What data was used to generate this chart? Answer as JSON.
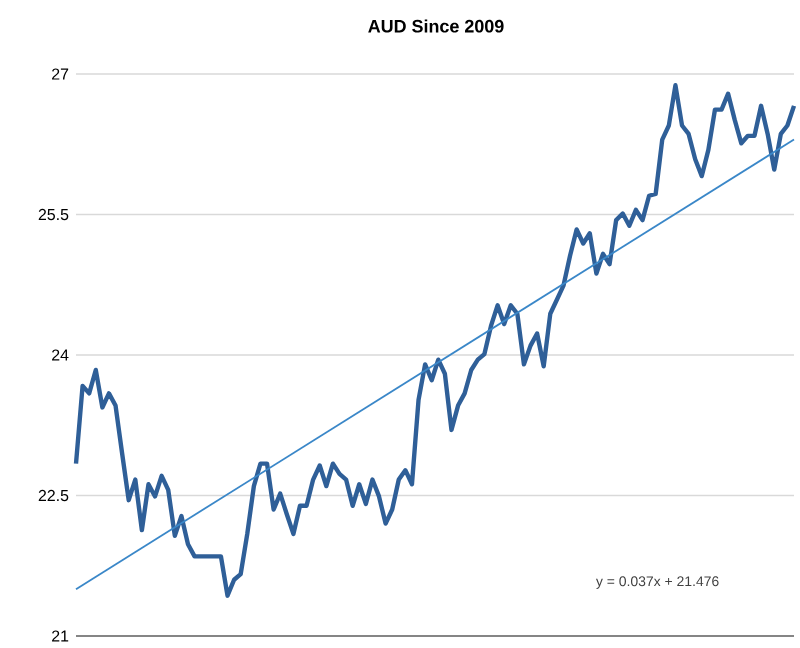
{
  "chart_data": {
    "type": "line",
    "title": "AUD Since 2009",
    "categories": [
      null,
      null,
      null,
      null,
      null,
      null,
      null,
      null,
      null,
      null,
      null,
      null,
      null,
      null,
      null,
      null,
      null,
      null,
      null,
      null,
      null,
      null,
      null,
      null,
      null,
      null,
      null,
      null,
      null,
      null,
      null,
      null,
      null,
      null,
      null,
      null,
      null,
      null,
      null,
      null,
      null,
      null,
      null,
      null,
      null,
      null,
      null,
      null,
      null,
      null,
      null,
      null,
      null,
      null,
      null,
      null,
      null,
      null,
      null,
      null,
      null,
      null,
      null,
      null,
      null,
      null,
      null,
      null,
      null,
      null,
      null,
      null,
      null,
      null,
      null,
      null,
      null,
      null,
      null,
      null,
      null,
      null,
      null,
      null,
      null,
      null,
      null,
      null,
      null,
      null,
      null,
      null,
      null,
      null,
      null,
      null,
      null,
      null,
      null,
      null,
      null,
      null,
      null,
      null,
      null,
      null,
      null,
      null,
      null,
      null
    ],
    "ylim": [
      21,
      27
    ],
    "yticks": [
      21,
      22.5,
      24,
      25.5,
      27
    ],
    "tick_labels": "y",
    "grid": "y",
    "marker": "none",
    "series": [
      {
        "color": "#2f5f98",
        "values": [
          22.84,
          23.67,
          23.59,
          23.84,
          23.44,
          23.59,
          23.46,
          22.95,
          22.45,
          22.67,
          22.13,
          22.62,
          22.49,
          22.71,
          22.56,
          22.07,
          22.28,
          21.98,
          21.85,
          21.85,
          21.85,
          21.85,
          21.85,
          21.43,
          21.6,
          21.66,
          22.09,
          22.6,
          22.84,
          22.84,
          22.35,
          22.52,
          22.3,
          22.09,
          22.39,
          22.39,
          22.67,
          22.82,
          22.6,
          22.84,
          22.73,
          22.67,
          22.39,
          22.62,
          22.41,
          22.67,
          22.49,
          22.2,
          22.35,
          22.67,
          22.77,
          22.62,
          23.52,
          23.9,
          23.73,
          23.95,
          23.8,
          23.2,
          23.46,
          23.59,
          23.84,
          23.95,
          24.01,
          24.31,
          24.53,
          24.33,
          24.53,
          24.44,
          23.9,
          24.1,
          24.23,
          23.88,
          24.44,
          24.59,
          24.74,
          25.06,
          25.34,
          25.19,
          25.3,
          24.87,
          25.08,
          24.97,
          25.44,
          25.51,
          25.38,
          25.55,
          25.44,
          25.7,
          25.72,
          26.3,
          26.45,
          26.88,
          26.45,
          26.36,
          26.09,
          25.91,
          26.19,
          26.62,
          26.62,
          26.79,
          26.51,
          26.26,
          26.34,
          26.34,
          26.66,
          26.36,
          25.98,
          26.36,
          26.45,
          26.66
        ]
      },
      {
        "color": "#3a87c8",
        "values": [
          21.5,
          null,
          null,
          null,
          null,
          null,
          null,
          null,
          null,
          null,
          null,
          null,
          null,
          null,
          null,
          null,
          null,
          null,
          null,
          null,
          null,
          null,
          null,
          null,
          null,
          null,
          null,
          null,
          null,
          null,
          null,
          null,
          null,
          null,
          null,
          null,
          null,
          null,
          null,
          null,
          null,
          null,
          null,
          null,
          null,
          null,
          null,
          null,
          null,
          null,
          null,
          null,
          null,
          null,
          null,
          null,
          null,
          null,
          null,
          null,
          null,
          null,
          null,
          null,
          null,
          null,
          null,
          null,
          null,
          null,
          null,
          null,
          null,
          null,
          null,
          null,
          null,
          null,
          null,
          null,
          null,
          null,
          null,
          null,
          null,
          null,
          null,
          null,
          null,
          null,
          null,
          null,
          null,
          null,
          null,
          null,
          null,
          null,
          null,
          null,
          null,
          null,
          null,
          null,
          null,
          null,
          null,
          null,
          null,
          26.3
        ]
      }
    ],
    "annotations": [
      "y = 0.037x + 21.476"
    ]
  }
}
